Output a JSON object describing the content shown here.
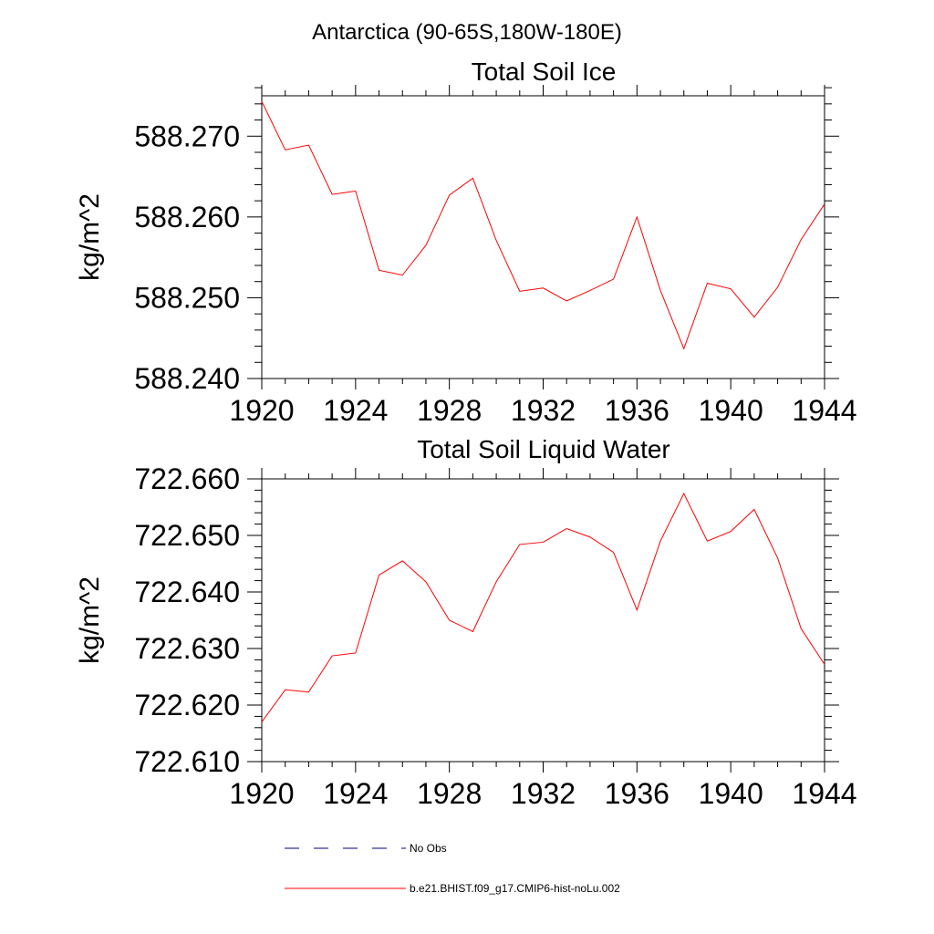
{
  "figure": {
    "title": "Antarctica (90-65S,180W-180E)"
  },
  "colors": {
    "series": "#ff0000",
    "no_obs": "#000080",
    "axis": "#000000"
  },
  "chart_data": [
    {
      "type": "line",
      "title": "Total Soil Ice",
      "xlabel": "",
      "ylabel": "kg/m^2",
      "xlim": [
        1920,
        1944
      ],
      "ylim": [
        588.24,
        588.275
      ],
      "x_ticks": [
        1920,
        1924,
        1928,
        1932,
        1936,
        1940,
        1944
      ],
      "x_tick_labels": [
        "1920",
        "1924",
        "1928",
        "1932",
        "1936",
        "1940",
        "1944"
      ],
      "y_ticks": [
        588.24,
        588.25,
        588.26,
        588.27
      ],
      "y_tick_labels": [
        "588.240",
        "588.250",
        "588.260",
        "588.270"
      ],
      "grid": false,
      "series": [
        {
          "name": "b.e21.BHIST.f09_g17.CMIP6-hist-noLu.002",
          "x": [
            1920,
            1921,
            1922,
            1923,
            1924,
            1925,
            1926,
            1927,
            1928,
            1929,
            1930,
            1931,
            1932,
            1933,
            1934,
            1935,
            1936,
            1937,
            1938,
            1939,
            1940,
            1941,
            1942,
            1943,
            1944
          ],
          "y": [
            588.2743,
            588.2683,
            588.2689,
            588.2628,
            588.2632,
            588.2534,
            588.2528,
            588.2565,
            588.2627,
            588.2648,
            588.2571,
            588.2508,
            588.2512,
            588.2496,
            588.2509,
            588.2523,
            588.26,
            588.2509,
            588.2437,
            588.2518,
            588.2511,
            588.2476,
            588.2513,
            588.2572,
            588.2616
          ]
        }
      ]
    },
    {
      "type": "line",
      "title": "Total Soil Liquid Water",
      "xlabel": "",
      "ylabel": "kg/m^2",
      "xlim": [
        1920,
        1944
      ],
      "ylim": [
        722.61,
        722.66
      ],
      "x_ticks": [
        1920,
        1924,
        1928,
        1932,
        1936,
        1940,
        1944
      ],
      "x_tick_labels": [
        "1920",
        "1924",
        "1928",
        "1932",
        "1936",
        "1940",
        "1944"
      ],
      "y_ticks": [
        722.61,
        722.62,
        722.63,
        722.64,
        722.65,
        722.66
      ],
      "y_tick_labels": [
        "722.610",
        "722.620",
        "722.630",
        "722.640",
        "722.650",
        "722.660"
      ],
      "grid": false,
      "series": [
        {
          "name": "b.e21.BHIST.f09_g17.CMIP6-hist-noLu.002",
          "x": [
            1920,
            1921,
            1922,
            1923,
            1924,
            1925,
            1926,
            1927,
            1928,
            1929,
            1930,
            1931,
            1932,
            1933,
            1934,
            1935,
            1936,
            1937,
            1938,
            1939,
            1940,
            1941,
            1942,
            1943,
            1944
          ],
          "y": [
            722.617,
            722.6227,
            722.6223,
            722.6287,
            722.6292,
            722.643,
            722.6455,
            722.6418,
            722.635,
            722.633,
            722.6418,
            722.6484,
            722.6488,
            722.6512,
            722.6497,
            722.647,
            722.6368,
            722.649,
            722.6574,
            722.649,
            722.6507,
            722.6546,
            722.646,
            722.6335,
            722.6272
          ]
        }
      ]
    }
  ],
  "legend": {
    "placement": "bottom",
    "entries": [
      {
        "label": "No Obs",
        "style": "dashed",
        "color": "#000080"
      },
      {
        "label": "b.e21.BHIST.f09_g17.CMIP6-hist-noLu.002",
        "style": "solid",
        "color": "#ff0000"
      }
    ]
  }
}
